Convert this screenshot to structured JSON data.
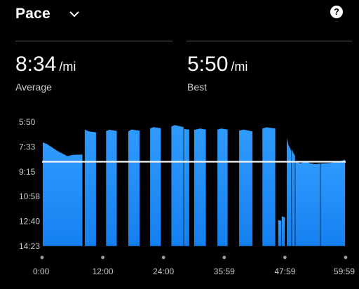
{
  "header": {
    "title": "Pace",
    "dropdown_icon": "chevron-down-icon",
    "help_icon": "help-icon",
    "help_glyph": "?"
  },
  "stats": [
    {
      "value": "8:34",
      "unit": "/mi",
      "label": "Average"
    },
    {
      "value": "5:50",
      "unit": "/mi",
      "label": "Best"
    }
  ],
  "colors": {
    "background": "#000000",
    "fill": "#1a8cff",
    "fill_top": "#2f9bff",
    "average_line": "#ffffff"
  },
  "chart_data": {
    "type": "area",
    "y_axis_reversed": true,
    "y_tick_labels": [
      "5:50",
      "7:33",
      "9:15",
      "10:58",
      "12:40",
      "14:23"
    ],
    "x_tick_labels": [
      "0:00",
      "12:00",
      "24:00",
      "35:59",
      "47:59",
      "59:59"
    ],
    "ylim_seconds": [
      350,
      863
    ],
    "xlim_minutes": [
      0,
      59.98
    ],
    "average_seconds": 514,
    "segments": [
      {
        "start": 0.1,
        "end": 8.0,
        "points": [
          [
            0.1,
            433
          ],
          [
            1.0,
            440
          ],
          [
            3.0,
            468
          ],
          [
            5.0,
            490
          ],
          [
            6.0,
            485
          ],
          [
            8.0,
            483
          ]
        ]
      },
      {
        "start": 8.4,
        "end": 10.7,
        "points": [
          [
            8.4,
            380
          ],
          [
            9.3,
            388
          ],
          [
            10.7,
            392
          ]
        ]
      },
      {
        "start": 12.6,
        "end": 14.8,
        "points": [
          [
            12.6,
            387
          ],
          [
            13.3,
            381
          ],
          [
            14.8,
            386
          ]
        ]
      },
      {
        "start": 17.0,
        "end": 19.3,
        "points": [
          [
            17.0,
            388
          ],
          [
            17.7,
            380
          ],
          [
            19.3,
            385
          ]
        ]
      },
      {
        "start": 21.3,
        "end": 23.5,
        "points": [
          [
            21.3,
            376
          ],
          [
            22.0,
            370
          ],
          [
            23.5,
            375
          ]
        ]
      },
      {
        "start": 25.5,
        "end": 28.0,
        "points": [
          [
            25.5,
            368
          ],
          [
            26.2,
            362
          ],
          [
            28.0,
            370
          ]
        ]
      },
      {
        "start": 28.0,
        "end": 29.1,
        "points": [
          [
            28.0,
            378
          ],
          [
            29.1,
            380
          ]
        ]
      },
      {
        "start": 30.0,
        "end": 32.4,
        "points": [
          [
            30.0,
            382
          ],
          [
            31.2,
            376
          ],
          [
            32.4,
            380
          ]
        ]
      },
      {
        "start": 34.6,
        "end": 36.7,
        "points": [
          [
            34.6,
            381
          ],
          [
            35.3,
            376
          ],
          [
            36.7,
            380
          ]
        ]
      },
      {
        "start": 38.9,
        "end": 41.6,
        "points": [
          [
            38.9,
            385
          ],
          [
            39.8,
            380
          ],
          [
            41.6,
            388
          ]
        ]
      },
      {
        "start": 43.5,
        "end": 46.1,
        "points": [
          [
            43.5,
            376
          ],
          [
            44.3,
            371
          ],
          [
            46.1,
            376
          ]
        ]
      },
      {
        "start": 46.6,
        "end": 47.3,
        "points": [
          [
            46.6,
            754
          ],
          [
            47.3,
            757
          ]
        ]
      },
      {
        "start": 47.3,
        "end": 48.0,
        "points": [
          [
            47.3,
            738
          ],
          [
            48.0,
            744
          ]
        ]
      },
      {
        "start": 48.3,
        "end": 49.3,
        "points": [
          [
            48.3,
            410
          ],
          [
            48.7,
            444
          ],
          [
            49.3,
            470
          ]
        ]
      },
      {
        "start": 49.3,
        "end": 50.0,
        "points": [
          [
            49.3,
            460
          ],
          [
            50.0,
            490
          ]
        ]
      },
      {
        "start": 50.0,
        "end": 55.0,
        "points": [
          [
            50.0,
            510
          ],
          [
            51.0,
            520
          ],
          [
            52.0,
            512
          ],
          [
            53.0,
            520
          ],
          [
            54.0,
            523
          ],
          [
            55.0,
            520
          ]
        ]
      },
      {
        "start": 55.0,
        "end": 59.9,
        "points": [
          [
            55.0,
            521
          ],
          [
            57.0,
            518
          ],
          [
            59.0,
            510
          ],
          [
            59.9,
            505
          ]
        ]
      }
    ]
  }
}
